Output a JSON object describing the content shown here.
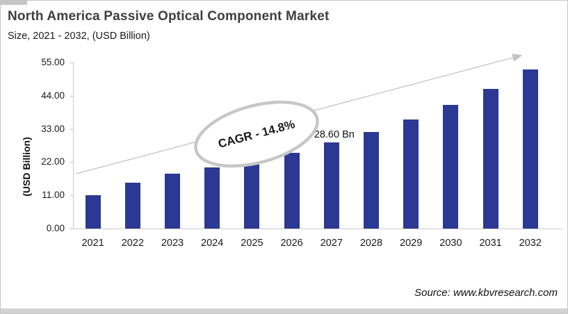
{
  "header": {
    "title": "North America Passive Optical Component Market",
    "subtitle": "Size, 2021 - 2032, (USD Billion)"
  },
  "chart_data": {
    "type": "bar",
    "title": "North America Passive Optical Component Market Size, 2021 - 2032, (USD Billion)",
    "categories": [
      "2021",
      "2022",
      "2023",
      "2024",
      "2025",
      "2026",
      "2027",
      "2028",
      "2029",
      "2030",
      "2031",
      "2032"
    ],
    "values": [
      11.1,
      15.3,
      18.1,
      20.2,
      22.4,
      25.1,
      28.6,
      32.0,
      36.2,
      41.0,
      46.3,
      52.6
    ],
    "xlabel": "",
    "ylabel": "(USD Billion)",
    "ylim": [
      0,
      55
    ],
    "yticks": [
      0,
      11,
      22,
      33,
      44,
      55
    ],
    "ytick_labels": [
      "0.00",
      "11.00",
      "22.00",
      "33.00",
      "44.00",
      "55.00"
    ],
    "grid": false,
    "legend": false,
    "bar_color": "#2b3894",
    "trend_arrow_color": "#c3c3c3",
    "annotations": {
      "cagr_label": "CAGR - 14.8%",
      "value_label": "28.60 Bn",
      "value_label_year": "2027"
    }
  },
  "footer": {
    "source": "Source: www.kbvresearch.com"
  }
}
